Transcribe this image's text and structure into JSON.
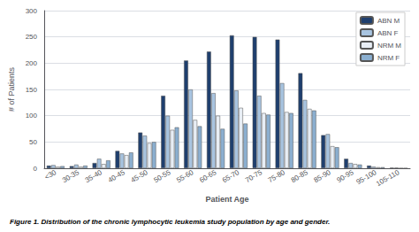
{
  "chart_data": {
    "type": "bar",
    "title": "Figure 1. Distribution of the chronic lymphocytic leukemia study population by age and gender.",
    "xlabel": "Patient Age",
    "ylabel": "# of Patients",
    "categories": [
      "<30",
      "30-35",
      "35-40",
      "40-45",
      "45-50",
      "50-55",
      "55-60",
      "60-65",
      "65-70",
      "70-75",
      "75-80",
      "80-85",
      "85-90",
      "90-95",
      "95-100",
      "105-110"
    ],
    "series": [
      {
        "name": "ABN M",
        "color": "#1F3F6E",
        "values": [
          5,
          4,
          10,
          33,
          68,
          138,
          205,
          222,
          253,
          250,
          245,
          181,
          63,
          18,
          5,
          1
        ]
      },
      {
        "name": "ABN F",
        "color": "#A8C4E0",
        "values": [
          6,
          7,
          18,
          28,
          62,
          100,
          150,
          143,
          148,
          138,
          162,
          130,
          65,
          10,
          3,
          1
        ]
      },
      {
        "name": "NRM M",
        "color": "#E8EEF5",
        "values": [
          3,
          3,
          8,
          25,
          48,
          73,
          92,
          100,
          115,
          105,
          107,
          113,
          42,
          8,
          2,
          0
        ]
      },
      {
        "name": "NRM F",
        "color": "#8BAFD0",
        "values": [
          4,
          5,
          15,
          30,
          50,
          78,
          80,
          75,
          85,
          102,
          105,
          110,
          40,
          7,
          2,
          0
        ]
      }
    ],
    "ylim": [
      0,
      300
    ],
    "yticks": [
      0,
      50,
      100,
      150,
      200,
      250,
      300
    ],
    "grid": true,
    "legend": "upper right"
  }
}
